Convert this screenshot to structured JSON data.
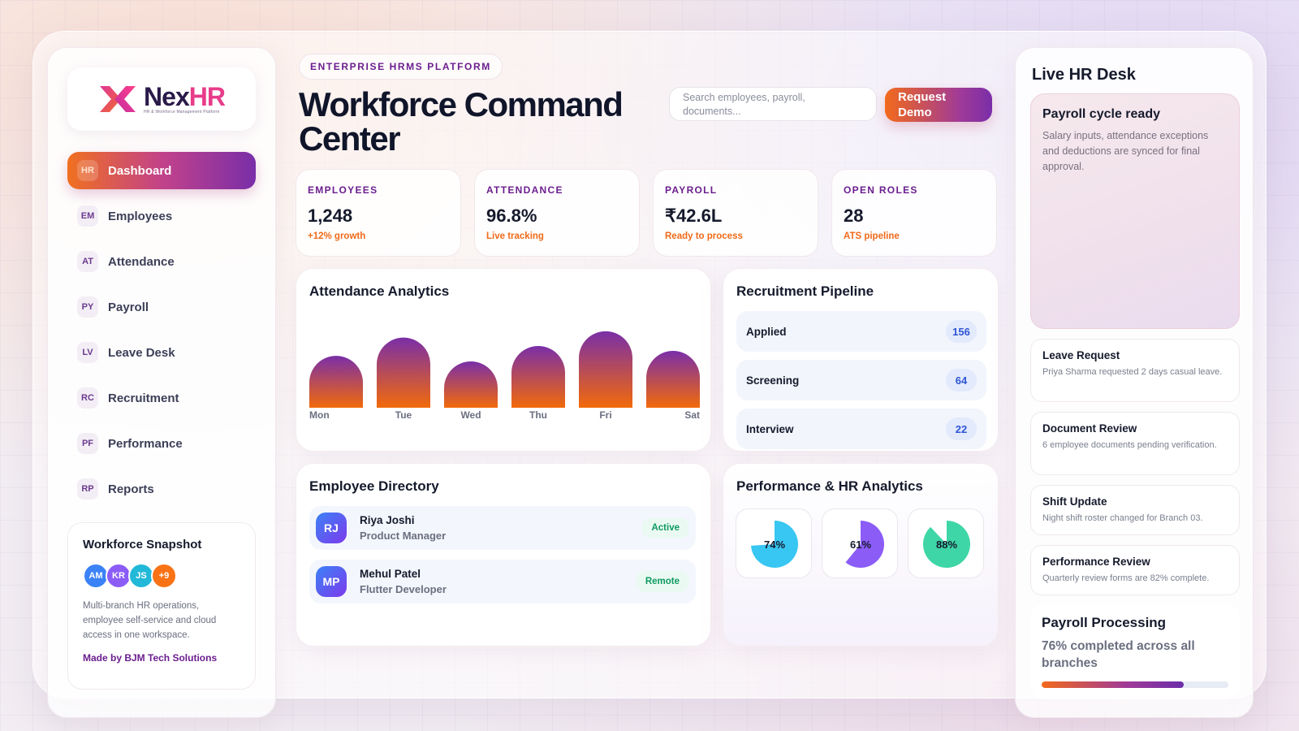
{
  "brand": {
    "name_part1": "Nex",
    "name_part2": "HR",
    "tagline": "HR & Workforce Management Platform"
  },
  "nav": [
    {
      "code": "HR",
      "label": "Dashboard",
      "active": true
    },
    {
      "code": "EM",
      "label": "Employees"
    },
    {
      "code": "AT",
      "label": "Attendance"
    },
    {
      "code": "PY",
      "label": "Payroll"
    },
    {
      "code": "LV",
      "label": "Leave Desk"
    },
    {
      "code": "RC",
      "label": "Recruitment"
    },
    {
      "code": "PF",
      "label": "Performance"
    },
    {
      "code": "RP",
      "label": "Reports"
    }
  ],
  "snapshot": {
    "title": "Workforce Snapshot",
    "avatars": [
      {
        "initials": "AM",
        "color": "#3b82f6"
      },
      {
        "initials": "KR",
        "color": "#8b5cf6"
      },
      {
        "initials": "JS",
        "color": "#22b8d8"
      },
      {
        "initials": "+9",
        "color": "#f97316"
      }
    ],
    "description": "Multi-branch HR operations, employee self-service and cloud access in one workspace.",
    "credit": "Made by BJM Tech Solutions"
  },
  "header": {
    "kicker": "ENTERPRISE HRMS PLATFORM",
    "title": "Workforce Command Center",
    "search_placeholder": "Search employees, payroll, documents...",
    "cta": "Request Demo"
  },
  "stats": [
    {
      "label": "EMPLOYEES",
      "value": "1,248",
      "note": "+12% growth"
    },
    {
      "label": "ATTENDANCE",
      "value": "96.8%",
      "note": "Live tracking"
    },
    {
      "label": "PAYROLL",
      "value": "₹42.6L",
      "note": "Ready to process"
    },
    {
      "label": "OPEN ROLES",
      "value": "28",
      "note": "ATS pipeline"
    }
  ],
  "attendance": {
    "title": "Attendance Analytics"
  },
  "chart_data": {
    "type": "bar",
    "title": "Attendance Analytics",
    "categories": [
      "Mon",
      "Tue",
      "Wed",
      "Thu",
      "Fri",
      "Sat"
    ],
    "values": [
      74,
      100,
      66,
      88,
      109,
      81
    ],
    "colors": {
      "top": "#7a2ea8",
      "bottom": "#f26a0a"
    }
  },
  "pipeline": {
    "title": "Recruitment Pipeline",
    "stages": [
      {
        "label": "Applied",
        "count": "156"
      },
      {
        "label": "Screening",
        "count": "64"
      },
      {
        "label": "Interview",
        "count": "22"
      }
    ]
  },
  "directory": {
    "title": "Employee Directory",
    "employees": [
      {
        "initials": "RJ",
        "name": "Riya Joshi",
        "role": "Product Manager",
        "status": "Active"
      },
      {
        "initials": "MP",
        "name": "Mehul Patel",
        "role": "Flutter Developer",
        "status": "Remote"
      }
    ]
  },
  "performance": {
    "title": "Performance & HR Analytics",
    "metrics": [
      {
        "label": "74%",
        "fraction": 0.74,
        "color": "#38c6f2"
      },
      {
        "label": "61%",
        "fraction": 0.61,
        "color": "#8b5cf6"
      },
      {
        "label": "88%",
        "fraction": 0.88,
        "color": "#3ed6a6"
      }
    ]
  },
  "desk": {
    "title": "Live HR Desk",
    "hero": {
      "title": "Payroll cycle ready",
      "description": "Salary inputs, attendance exceptions and deductions are synced for final approval."
    },
    "notes": [
      {
        "title": "Leave Request",
        "description": "Priya Sharma requested 2 days casual leave."
      },
      {
        "title": "Document Review",
        "description": "6 employee documents pending verification."
      },
      {
        "title": "Shift Update",
        "description": "Night shift roster changed for Branch 03."
      },
      {
        "title": "Performance Review",
        "description": "Quarterly review forms are 82% complete."
      }
    ],
    "payroll": {
      "title": "Payroll Processing",
      "subtitle": "76% completed across all branches",
      "progress": 0.76
    }
  }
}
